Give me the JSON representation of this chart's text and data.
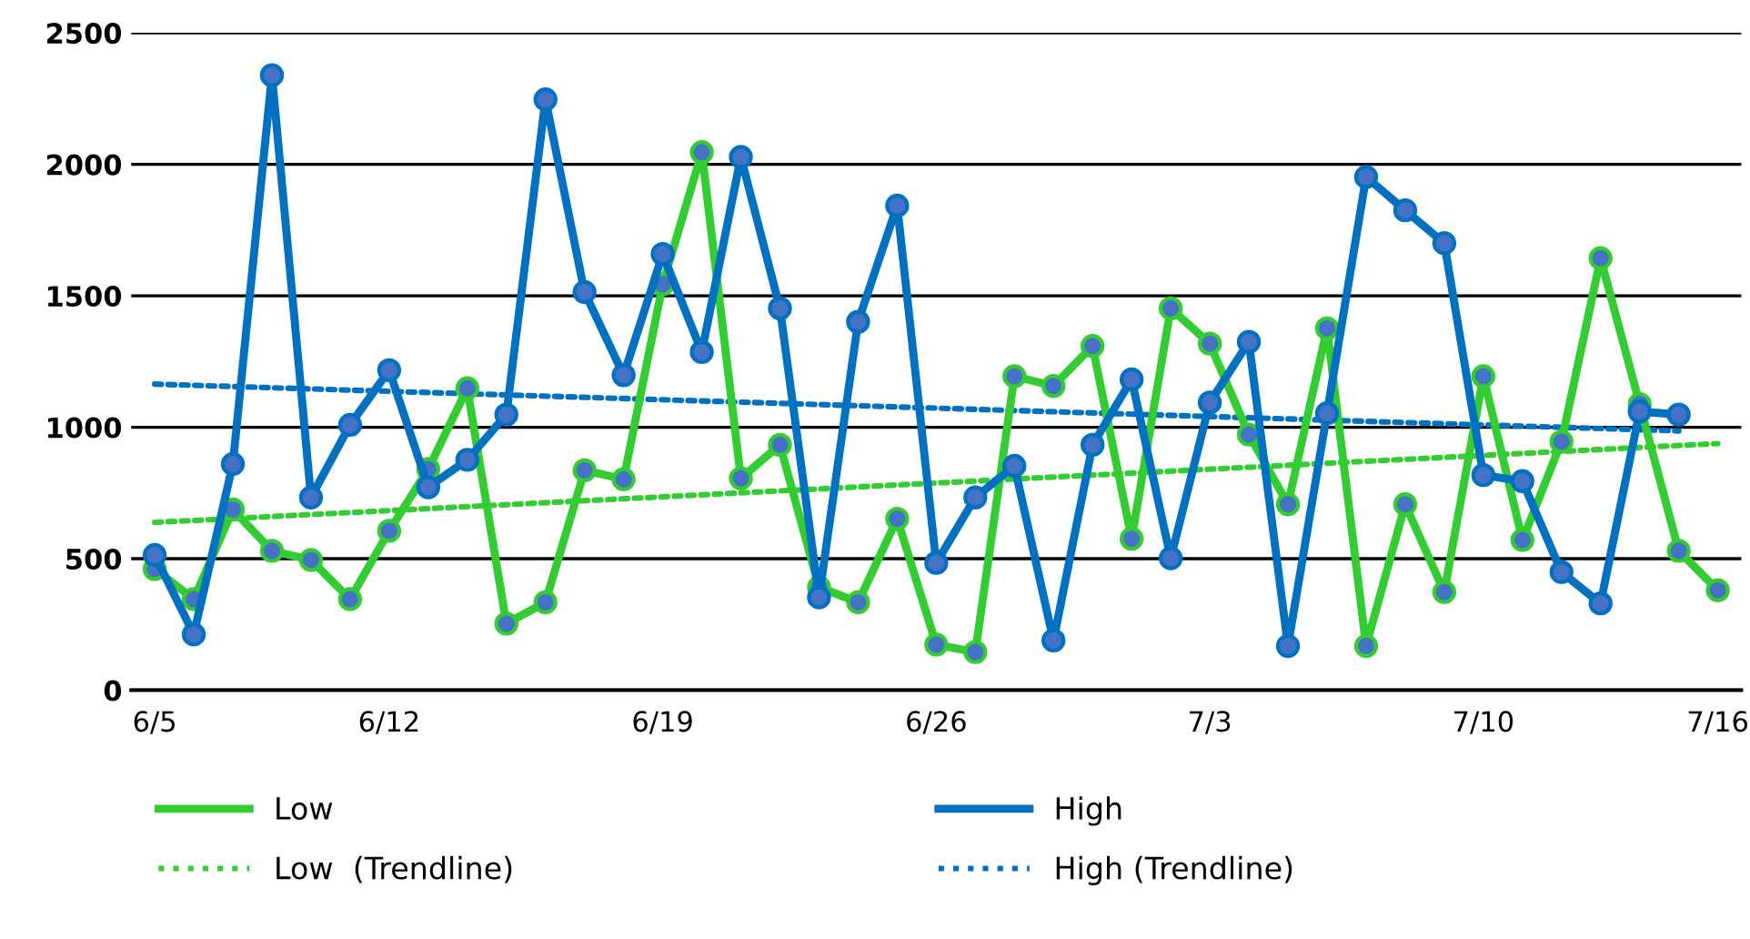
{
  "chart_data": {
    "type": "line",
    "categories": [
      "6/5",
      null,
      null,
      null,
      null,
      null,
      "6/12",
      null,
      null,
      null,
      null,
      null,
      null,
      "6/19",
      null,
      null,
      null,
      null,
      null,
      null,
      "6/26",
      null,
      null,
      null,
      null,
      null,
      null,
      "7/3",
      null,
      null,
      null,
      null,
      null,
      null,
      "7/10",
      null,
      null,
      null,
      null,
      null,
      "7/16"
    ],
    "series": [
      {
        "name": "Low",
        "color": "#33cc33",
        "marker": "circle",
        "line_style": "solid",
        "values": [
          461,
          346,
          687,
          530,
          495,
          346,
          606,
          841,
          1148,
          253,
          334,
          836,
          802,
          1544,
          2046,
          806,
          933,
          392,
          334,
          652,
          173,
          145,
          1194,
          1157,
          1309,
          576,
          1452,
          1318,
          972,
          707,
          1376,
          168,
          707,
          373,
          1194,
          571,
          945,
          1643,
          1088,
          530,
          380
        ]
      },
      {
        "name": "High",
        "color": "#0070c0",
        "marker": "circle",
        "line_style": "solid",
        "values": [
          514,
          212,
          860,
          2339,
          733,
          1009,
          1217,
          772,
          876,
          1048,
          2247,
          1514,
          1198,
          1659,
          1286,
          2028,
          1452,
          353,
          1401,
          1843,
          484,
          733,
          853,
          189,
          933,
          1182,
          502,
          1094,
          1325,
          168,
          1053,
          1952,
          1825,
          1700,
          818,
          795,
          449,
          330,
          1060,
          1048,
          null
        ]
      },
      {
        "name": "Low  (Trendline)",
        "color": "#33cc33",
        "marker": "none",
        "line_style": "dotted",
        "values": [
          638,
          null,
          null,
          null,
          null,
          null,
          null,
          null,
          null,
          null,
          null,
          null,
          null,
          null,
          null,
          null,
          null,
          null,
          null,
          null,
          null,
          null,
          null,
          null,
          null,
          null,
          null,
          null,
          null,
          null,
          null,
          null,
          null,
          null,
          null,
          null,
          null,
          null,
          null,
          null,
          938
        ]
      },
      {
        "name": "High (Trendline)",
        "color": "#0070c0",
        "marker": "none",
        "line_style": "dotted",
        "values": [
          1164,
          null,
          null,
          null,
          null,
          null,
          null,
          null,
          null,
          null,
          null,
          null,
          null,
          null,
          null,
          null,
          null,
          null,
          null,
          null,
          null,
          null,
          null,
          null,
          null,
          null,
          null,
          null,
          null,
          null,
          null,
          null,
          null,
          null,
          null,
          null,
          null,
          null,
          null,
          986,
          null
        ]
      }
    ],
    "ylim": [
      0,
      2500
    ],
    "yticks": [
      0,
      500,
      1000,
      1500,
      2000,
      2500
    ],
    "grid": "y",
    "legend": "bottom"
  }
}
